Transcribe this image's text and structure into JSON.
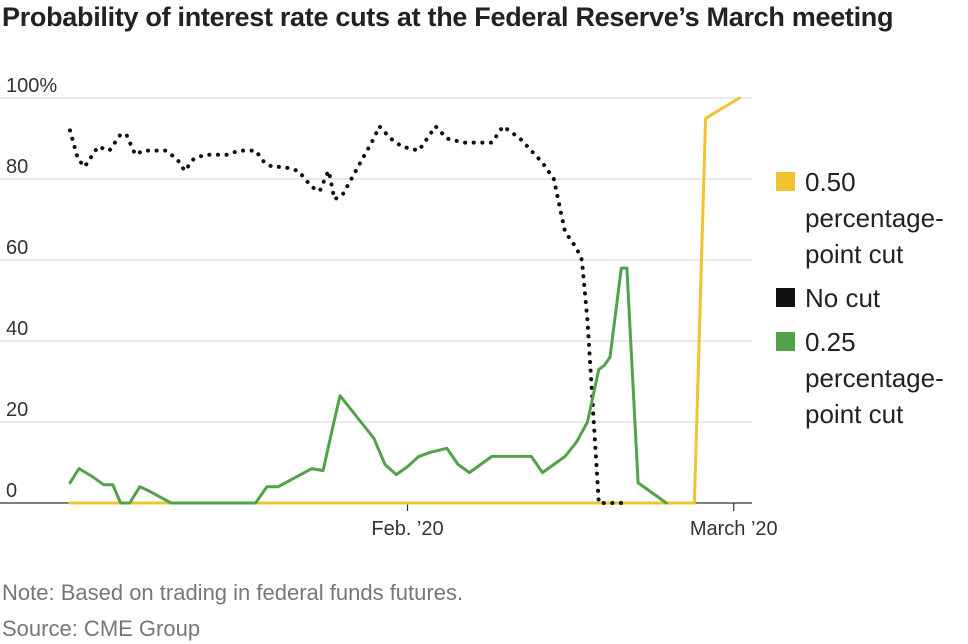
{
  "chart_data": {
    "type": "line",
    "title": "Probability of interest rate cuts at the Federal Reserve’s March meeting",
    "xlabel": "",
    "ylabel": "",
    "ylim": [
      0,
      100
    ],
    "yticks": [
      "100%",
      "80",
      "60",
      "40",
      "20",
      "0"
    ],
    "ytick_values": [
      100,
      80,
      60,
      40,
      20,
      0
    ],
    "xticks": [
      {
        "label": "Feb. ’20",
        "x": 30
      },
      {
        "label": "March ’20",
        "x": 59
      }
    ],
    "grid": true,
    "legend_position": "right",
    "series": [
      {
        "name": "0.50 percentage-point cut",
        "legend_lines": [
          "0.50",
          "percentage-",
          "point cut"
        ],
        "color": "#f0c330",
        "style": "solid",
        "points": [
          [
            0,
            0
          ],
          [
            55,
            0
          ],
          [
            55.5,
            0
          ],
          [
            56.5,
            95
          ],
          [
            59.5,
            100
          ]
        ]
      },
      {
        "name": "No cut",
        "legend_lines": [
          "No cut"
        ],
        "color": "#111111",
        "style": "dotted",
        "points": [
          [
            0,
            92
          ],
          [
            0.7,
            85
          ],
          [
            1.3,
            83
          ],
          [
            2.5,
            88
          ],
          [
            3.5,
            87
          ],
          [
            4.5,
            91
          ],
          [
            5,
            91
          ],
          [
            5.8,
            86
          ],
          [
            6.5,
            87
          ],
          [
            7.5,
            87
          ],
          [
            8.5,
            87
          ],
          [
            9.5,
            85
          ],
          [
            10.2,
            82
          ],
          [
            11,
            85
          ],
          [
            12,
            86
          ],
          [
            13,
            86
          ],
          [
            14,
            86
          ],
          [
            15,
            87
          ],
          [
            16,
            87
          ],
          [
            16.5,
            87
          ],
          [
            17.3,
            84
          ],
          [
            18,
            83
          ],
          [
            19,
            83
          ],
          [
            20.3,
            82
          ],
          [
            21.5,
            78
          ],
          [
            22.2,
            77
          ],
          [
            22.8,
            81
          ],
          [
            23,
            82
          ],
          [
            23.5,
            75
          ],
          [
            24.2,
            76
          ],
          [
            25,
            80
          ],
          [
            26,
            85
          ],
          [
            27,
            90
          ],
          [
            27.5,
            93
          ],
          [
            28.5,
            90
          ],
          [
            29.5,
            88
          ],
          [
            31,
            87
          ],
          [
            32,
            91
          ],
          [
            32.5,
            93
          ],
          [
            33.5,
            90
          ],
          [
            35,
            89
          ],
          [
            37,
            89
          ],
          [
            37.5,
            89
          ],
          [
            38.5,
            93
          ],
          [
            40,
            90
          ],
          [
            41,
            87
          ],
          [
            42,
            84
          ],
          [
            43,
            80
          ],
          [
            44,
            67
          ],
          [
            45,
            63
          ],
          [
            45.5,
            60
          ],
          [
            46,
            45
          ],
          [
            47,
            0
          ],
          [
            47.5,
            0
          ],
          [
            48.5,
            0
          ],
          [
            49.5,
            0
          ]
        ]
      },
      {
        "name": "0.25 percentage-point cut",
        "legend_lines": [
          "0.25",
          "percentage-",
          "point cut"
        ],
        "color": "#52a347",
        "style": "solid",
        "points": [
          [
            0,
            5
          ],
          [
            0.8,
            8.5
          ],
          [
            2,
            6.5
          ],
          [
            3,
            4.5
          ],
          [
            3.8,
            4.5
          ],
          [
            4.5,
            0
          ],
          [
            5.3,
            0
          ],
          [
            6.2,
            4
          ],
          [
            7,
            3
          ],
          [
            8,
            1.5
          ],
          [
            9,
            0
          ],
          [
            11,
            0
          ],
          [
            13,
            0
          ],
          [
            15,
            0
          ],
          [
            16,
            0
          ],
          [
            16.5,
            0
          ],
          [
            17.5,
            4
          ],
          [
            18.5,
            4
          ],
          [
            19.5,
            5.5
          ],
          [
            20.5,
            7
          ],
          [
            21.5,
            8.5
          ],
          [
            22.5,
            8
          ],
          [
            23.3,
            18
          ],
          [
            24,
            26.5
          ],
          [
            25,
            23
          ],
          [
            26,
            19.5
          ],
          [
            27,
            16
          ],
          [
            28,
            9.5
          ],
          [
            29,
            7
          ],
          [
            30,
            9
          ],
          [
            31,
            11.5
          ],
          [
            32,
            12.5
          ],
          [
            33.5,
            13.5
          ],
          [
            34.5,
            9.5
          ],
          [
            35.5,
            7.5
          ],
          [
            36.5,
            9.5
          ],
          [
            37.5,
            11.5
          ],
          [
            39,
            11.5
          ],
          [
            40,
            11.5
          ],
          [
            41,
            11.5
          ],
          [
            42,
            7.5
          ],
          [
            43,
            9.5
          ],
          [
            44,
            11.5
          ],
          [
            45,
            15
          ],
          [
            46,
            20
          ],
          [
            47,
            33
          ],
          [
            47.5,
            34
          ],
          [
            48,
            36
          ],
          [
            49,
            58
          ],
          [
            49.5,
            58
          ],
          [
            50.5,
            5
          ],
          [
            51.5,
            3
          ],
          [
            53,
            0
          ]
        ]
      }
    ],
    "x_domain": [
      0,
      60
    ]
  },
  "notes": {
    "note": "Note: Based on trading in federal funds futures.",
    "source": "Source: CME Group"
  }
}
